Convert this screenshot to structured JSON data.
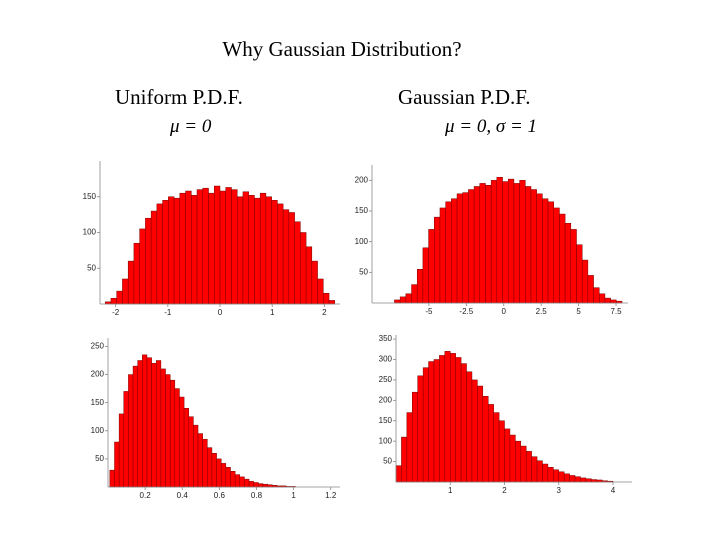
{
  "title": "Why Gaussian Distribution?",
  "panels": [
    {
      "heading": "Uniform P.D.F.",
      "parameter": "μ = 0"
    },
    {
      "heading": "Gaussian P.D.F.",
      "parameter": "μ = 0, σ = 1"
    }
  ],
  "chart_data": [
    {
      "type": "histogram",
      "color": "#ff0000",
      "bins": [
        -2.2,
        -2.09,
        -1.98,
        -1.87,
        -1.76,
        -1.65,
        -1.54,
        -1.43,
        -1.32,
        -1.21,
        -1.1,
        -0.99,
        -0.88,
        -0.77,
        -0.66,
        -0.55,
        -0.44,
        -0.33,
        -0.22,
        -0.11,
        0,
        0.11,
        0.22,
        0.33,
        0.44,
        0.55,
        0.66,
        0.77,
        0.88,
        0.99,
        1.1,
        1.21,
        1.32,
        1.43,
        1.54,
        1.65,
        1.76,
        1.87,
        1.98,
        2.09,
        2.2
      ],
      "values": [
        3,
        8,
        18,
        35,
        60,
        85,
        105,
        120,
        130,
        140,
        145,
        150,
        148,
        155,
        158,
        152,
        160,
        162,
        155,
        165,
        158,
        163,
        160,
        150,
        157,
        152,
        148,
        155,
        150,
        145,
        140,
        132,
        128,
        115,
        100,
        80,
        60,
        35,
        15,
        5
      ],
      "xlim": [
        -2.3,
        2.3
      ],
      "ylim": [
        0,
        200
      ],
      "xticks": [
        -2,
        -1,
        0,
        1,
        2
      ],
      "yticks": [
        50,
        100,
        150
      ]
    },
    {
      "type": "histogram",
      "color": "#ff0000",
      "bins": [
        -7.3,
        -6.92,
        -6.54,
        -6.16,
        -5.78,
        -5.4,
        -5.02,
        -4.64,
        -4.26,
        -3.88,
        -3.5,
        -3.12,
        -2.74,
        -2.36,
        -1.98,
        -1.6,
        -1.22,
        -0.84,
        -0.46,
        -0.08,
        0.3,
        0.68,
        1.06,
        1.44,
        1.82,
        2.2,
        2.58,
        2.96,
        3.34,
        3.72,
        4.1,
        4.48,
        4.86,
        5.24,
        5.62,
        6.0,
        6.38,
        6.76,
        7.14,
        7.52,
        7.9
      ],
      "values": [
        5,
        10,
        15,
        30,
        55,
        90,
        120,
        140,
        155,
        165,
        170,
        178,
        180,
        185,
        190,
        195,
        192,
        200,
        205,
        198,
        202,
        195,
        200,
        190,
        185,
        178,
        170,
        165,
        155,
        145,
        130,
        120,
        95,
        70,
        45,
        25,
        15,
        8,
        5,
        3
      ],
      "xlim": [
        -8.8,
        8.3
      ],
      "ylim": [
        0,
        225
      ],
      "xticks": [
        -5,
        -2.5,
        0,
        2.5,
        5,
        7.5
      ],
      "yticks": [
        50,
        100,
        150,
        200
      ]
    },
    {
      "type": "histogram",
      "color": "#ff0000",
      "bins": [
        0.01,
        0.035,
        0.06,
        0.085,
        0.11,
        0.135,
        0.16,
        0.185,
        0.21,
        0.235,
        0.26,
        0.285,
        0.31,
        0.335,
        0.36,
        0.385,
        0.41,
        0.435,
        0.46,
        0.485,
        0.51,
        0.535,
        0.56,
        0.585,
        0.61,
        0.635,
        0.66,
        0.685,
        0.71,
        0.735,
        0.76,
        0.785,
        0.81,
        0.835,
        0.86,
        0.885,
        0.91,
        0.935,
        0.96,
        0.985,
        1.01
      ],
      "values": [
        30,
        80,
        130,
        170,
        200,
        215,
        225,
        235,
        230,
        220,
        225,
        210,
        200,
        190,
        175,
        160,
        140,
        125,
        110,
        95,
        85,
        70,
        60,
        50,
        42,
        35,
        28,
        22,
        18,
        14,
        10,
        8,
        6,
        5,
        4,
        3,
        2,
        2,
        1,
        1
      ],
      "xlim": [
        0,
        1.25
      ],
      "ylim": [
        0,
        265
      ],
      "xticks": [
        0.2,
        0.4,
        0.6,
        0.8,
        1,
        1.2
      ],
      "yticks": [
        50,
        100,
        150,
        200,
        250
      ]
    },
    {
      "type": "histogram",
      "color": "#ff0000",
      "bins": [
        0,
        0.1,
        0.2,
        0.3,
        0.4,
        0.5,
        0.6,
        0.7,
        0.8,
        0.9,
        1.0,
        1.1,
        1.2,
        1.3,
        1.4,
        1.5,
        1.6,
        1.7,
        1.8,
        1.9,
        2.0,
        2.1,
        2.2,
        2.3,
        2.4,
        2.5,
        2.6,
        2.7,
        2.8,
        2.9,
        3.0,
        3.1,
        3.2,
        3.3,
        3.4,
        3.5,
        3.6,
        3.7,
        3.8,
        3.9,
        4.0
      ],
      "values": [
        40,
        110,
        170,
        220,
        260,
        280,
        295,
        300,
        310,
        320,
        315,
        305,
        290,
        270,
        250,
        235,
        210,
        190,
        170,
        150,
        130,
        115,
        100,
        88,
        75,
        62,
        52,
        44,
        36,
        30,
        25,
        20,
        16,
        13,
        10,
        8,
        6,
        5,
        3,
        2
      ],
      "xlim": [
        0,
        4.35
      ],
      "ylim": [
        0,
        360
      ],
      "xticks": [
        1,
        2,
        3,
        4
      ],
      "yticks": [
        50,
        100,
        150,
        200,
        250,
        300,
        350
      ]
    }
  ]
}
